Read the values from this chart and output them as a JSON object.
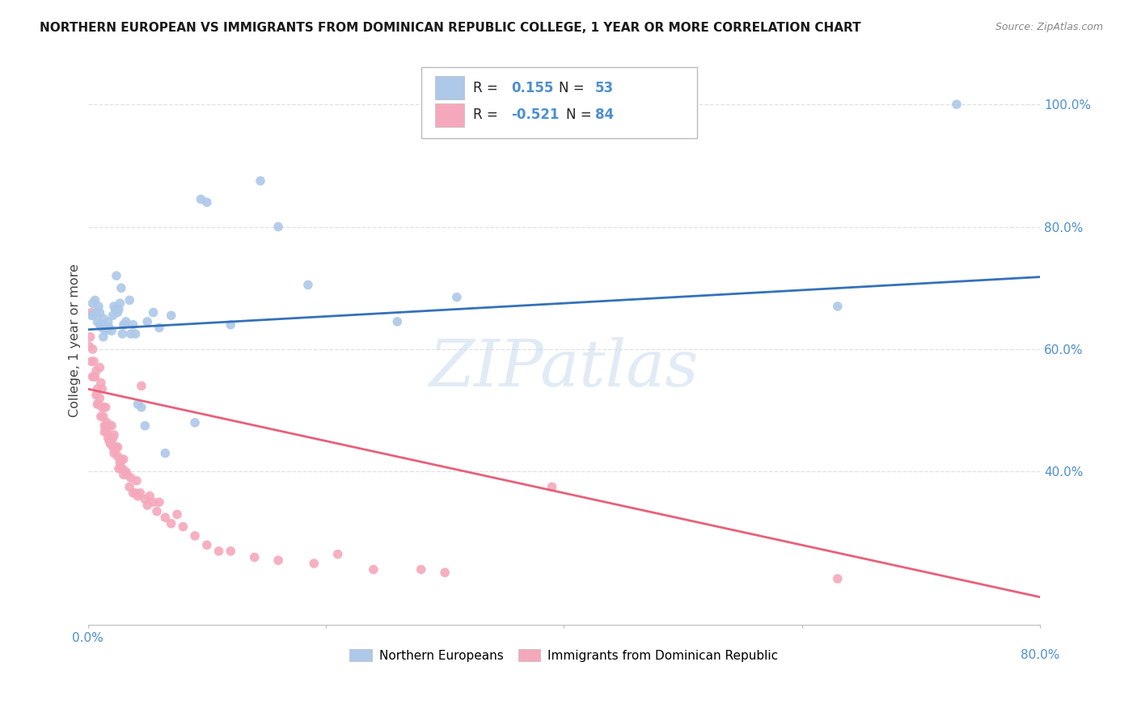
{
  "title": "NORTHERN EUROPEAN VS IMMIGRANTS FROM DOMINICAN REPUBLIC COLLEGE, 1 YEAR OR MORE CORRELATION CHART",
  "source": "Source: ZipAtlas.com",
  "ylabel": "College, 1 year or more",
  "x_min": 0.0,
  "x_max": 0.8,
  "y_min": 0.15,
  "y_max": 1.08,
  "blue_R": 0.155,
  "blue_N": 53,
  "pink_R": -0.521,
  "pink_N": 84,
  "blue_color": "#adc8e8",
  "pink_color": "#f5a8bc",
  "blue_line_color": "#3572b8",
  "pink_line_color": "#e8607a",
  "watermark_text": "ZIPatlas",
  "legend_label_blue": "Northern Europeans",
  "legend_label_pink": "Immigrants from Dominican Republic",
  "blue_scatter_x": [
    0.003,
    0.004,
    0.005,
    0.006,
    0.007,
    0.008,
    0.009,
    0.01,
    0.01,
    0.012,
    0.013,
    0.013,
    0.014,
    0.015,
    0.016,
    0.017,
    0.018,
    0.02,
    0.021,
    0.022,
    0.023,
    0.024,
    0.025,
    0.026,
    0.027,
    0.028,
    0.029,
    0.03,
    0.031,
    0.032,
    0.035,
    0.036,
    0.038,
    0.04,
    0.042,
    0.045,
    0.048,
    0.05,
    0.055,
    0.06,
    0.065,
    0.07,
    0.09,
    0.095,
    0.1,
    0.12,
    0.145,
    0.16,
    0.185,
    0.26,
    0.31,
    0.63,
    0.73
  ],
  "blue_scatter_y": [
    0.655,
    0.675,
    0.655,
    0.68,
    0.66,
    0.645,
    0.67,
    0.64,
    0.66,
    0.635,
    0.65,
    0.62,
    0.64,
    0.63,
    0.635,
    0.645,
    0.635,
    0.63,
    0.655,
    0.67,
    0.665,
    0.72,
    0.66,
    0.665,
    0.675,
    0.7,
    0.625,
    0.64,
    0.64,
    0.645,
    0.68,
    0.625,
    0.64,
    0.625,
    0.51,
    0.505,
    0.475,
    0.645,
    0.66,
    0.635,
    0.43,
    0.655,
    0.48,
    0.845,
    0.84,
    0.64,
    0.875,
    0.8,
    0.705,
    0.645,
    0.685,
    0.67,
    1.0
  ],
  "pink_scatter_x": [
    0.001,
    0.002,
    0.003,
    0.003,
    0.004,
    0.004,
    0.005,
    0.005,
    0.006,
    0.007,
    0.007,
    0.008,
    0.008,
    0.009,
    0.01,
    0.01,
    0.011,
    0.011,
    0.012,
    0.012,
    0.013,
    0.013,
    0.014,
    0.014,
    0.015,
    0.015,
    0.015,
    0.016,
    0.016,
    0.017,
    0.017,
    0.018,
    0.018,
    0.019,
    0.02,
    0.02,
    0.021,
    0.021,
    0.022,
    0.022,
    0.023,
    0.024,
    0.025,
    0.025,
    0.026,
    0.027,
    0.028,
    0.028,
    0.029,
    0.03,
    0.03,
    0.032,
    0.033,
    0.035,
    0.036,
    0.038,
    0.04,
    0.041,
    0.042,
    0.044,
    0.045,
    0.048,
    0.05,
    0.052,
    0.055,
    0.058,
    0.06,
    0.065,
    0.07,
    0.075,
    0.08,
    0.09,
    0.1,
    0.11,
    0.12,
    0.14,
    0.16,
    0.19,
    0.21,
    0.24,
    0.28,
    0.3,
    0.39,
    0.63
  ],
  "pink_scatter_y": [
    0.605,
    0.62,
    0.66,
    0.58,
    0.6,
    0.555,
    0.555,
    0.58,
    0.555,
    0.525,
    0.565,
    0.51,
    0.535,
    0.51,
    0.52,
    0.57,
    0.49,
    0.545,
    0.505,
    0.535,
    0.49,
    0.505,
    0.465,
    0.475,
    0.475,
    0.505,
    0.47,
    0.465,
    0.48,
    0.455,
    0.475,
    0.45,
    0.475,
    0.445,
    0.445,
    0.475,
    0.455,
    0.44,
    0.43,
    0.46,
    0.435,
    0.44,
    0.425,
    0.44,
    0.405,
    0.415,
    0.405,
    0.42,
    0.405,
    0.395,
    0.42,
    0.4,
    0.395,
    0.375,
    0.39,
    0.365,
    0.365,
    0.385,
    0.36,
    0.365,
    0.54,
    0.355,
    0.345,
    0.36,
    0.35,
    0.335,
    0.35,
    0.325,
    0.315,
    0.33,
    0.31,
    0.295,
    0.28,
    0.27,
    0.27,
    0.26,
    0.255,
    0.25,
    0.265,
    0.24,
    0.24,
    0.235,
    0.375,
    0.225
  ],
  "blue_line_y_start": 0.632,
  "blue_line_y_end": 0.718,
  "pink_line_y_start": 0.535,
  "pink_line_y_end": 0.195,
  "grid_color": "#e0e0e0",
  "background_color": "#ffffff",
  "axis_color": "#cccccc",
  "right_tick_color": "#4d8fd1",
  "bottom_tick_color": "#4d8fd1",
  "legend_color_text": "#4d8fd1"
}
